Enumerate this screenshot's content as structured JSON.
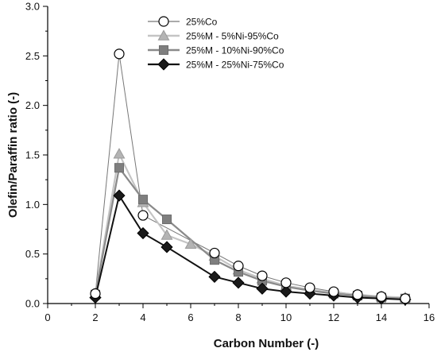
{
  "chart_data": {
    "type": "line",
    "xlabel": "Carbon Number (-)",
    "ylabel": "Olefin/Paraffin ratio (-)",
    "xlim": [
      0,
      16
    ],
    "ylim": [
      0,
      3.0
    ],
    "x_ticks": [
      "0",
      "2",
      "4",
      "6",
      "8",
      "10",
      "12",
      "14",
      "16"
    ],
    "y_ticks": [
      "0.0",
      "0.5",
      "1.0",
      "1.5",
      "2.0",
      "2.5",
      "3.0"
    ],
    "grid": false,
    "legend_position": "top-center",
    "series": [
      {
        "name": "25%Co",
        "marker": "circle-open",
        "line_color": "#777777",
        "marker_fill": "#ffffff",
        "marker_stroke": "#000000",
        "x": [
          2,
          3,
          4,
          7,
          8,
          9,
          10,
          11,
          12,
          13,
          14,
          15
        ],
        "y": [
          0.1,
          2.52,
          0.89,
          0.51,
          0.38,
          0.28,
          0.21,
          0.16,
          0.12,
          0.09,
          0.07,
          0.05
        ]
      },
      {
        "name": "25%M - 5%Ni-95%Co",
        "marker": "triangle",
        "line_color": "#c4c4c4",
        "marker_fill": "#b4b4b4",
        "marker_stroke": "#9a9a9a",
        "x": [
          2,
          3,
          4,
          5,
          6,
          7,
          8,
          9,
          10,
          11,
          12,
          13,
          14,
          15
        ],
        "y": [
          0.1,
          1.51,
          1.02,
          0.69,
          0.6,
          0.48,
          0.34,
          0.25,
          0.18,
          0.14,
          0.11,
          0.09,
          0.07,
          0.06
        ]
      },
      {
        "name": "25%M - 10%Ni-90%Co",
        "marker": "square",
        "line_color": "#8a8a8a",
        "marker_fill": "#7f7f7f",
        "marker_stroke": "#6e6e6e",
        "x": [
          2,
          3,
          4,
          5,
          7,
          8,
          9,
          10,
          11,
          12,
          13,
          14,
          15
        ],
        "y": [
          0.09,
          1.37,
          1.05,
          0.85,
          0.44,
          0.32,
          0.23,
          0.17,
          0.13,
          0.1,
          0.08,
          0.06,
          0.05
        ]
      },
      {
        "name": "25%M - 25%Ni-75%Co",
        "marker": "diamond",
        "line_color": "#111111",
        "marker_fill": "#1a1a1a",
        "marker_stroke": "#000000",
        "x": [
          2,
          3,
          4,
          5,
          7,
          8,
          9,
          10,
          11,
          12,
          13,
          14,
          15
        ],
        "y": [
          0.06,
          1.09,
          0.71,
          0.57,
          0.27,
          0.21,
          0.15,
          0.12,
          0.1,
          0.08,
          0.06,
          0.05,
          0.04
        ]
      }
    ]
  }
}
